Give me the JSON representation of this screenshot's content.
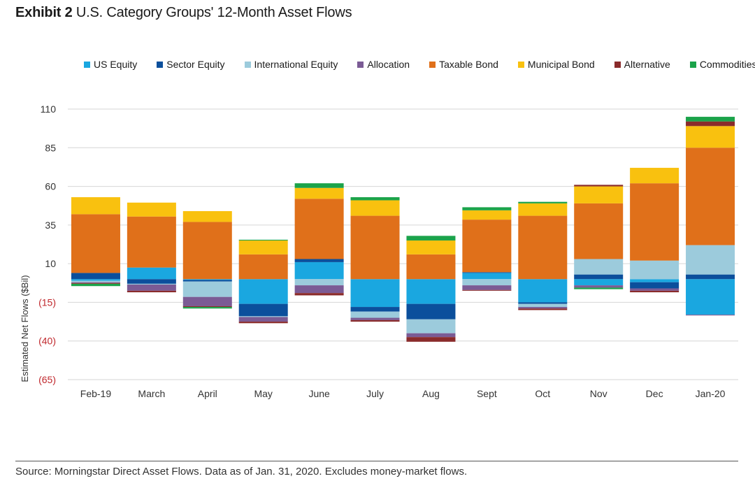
{
  "header": {
    "exhibit": "Exhibit 2",
    "title": "U.S. Category Groups' 12-Month Asset Flows"
  },
  "footer": {
    "source": "Source: Morningstar Direct Asset Flows. Data as of Jan. 31, 2020. Excludes money-market flows."
  },
  "chart_data": {
    "type": "bar",
    "stacked": true,
    "ylabel": "Estimated Net Flows ($Bil)",
    "xlabel": "",
    "ylim": [
      -65,
      110
    ],
    "y_ticks": [
      {
        "value": 110,
        "label": "110",
        "color": "#333333"
      },
      {
        "value": 85,
        "label": "85",
        "color": "#333333"
      },
      {
        "value": 60,
        "label": "60",
        "color": "#333333"
      },
      {
        "value": 35,
        "label": "35",
        "color": "#333333"
      },
      {
        "value": 10,
        "label": "10",
        "color": "#333333"
      },
      {
        "value": -15,
        "label": "(15)",
        "color": "#c0282d"
      },
      {
        "value": -40,
        "label": "(40)",
        "color": "#c0282d"
      },
      {
        "value": -65,
        "label": "(65)",
        "color": "#c0282d"
      }
    ],
    "grid": true,
    "legend_position": "top",
    "categories": [
      "Feb-19",
      "March",
      "April",
      "May",
      "June",
      "July",
      "Aug",
      "Sept",
      "Oct",
      "Nov",
      "Dec",
      "Jan-20"
    ],
    "series": [
      {
        "name": "US Equity",
        "color": "#1aa7e0",
        "values": [
          -1,
          7.5,
          -0.5,
          -16,
          11,
          -18,
          -16,
          4,
          -15,
          -4,
          -2,
          -23
        ]
      },
      {
        "name": "Sector Equity",
        "color": "#0b4f9c",
        "values": [
          4,
          -3,
          -1,
          -8,
          2,
          -3,
          -10,
          0.5,
          -1,
          3,
          -4,
          3
        ]
      },
      {
        "name": "International Equity",
        "color": "#9ccbdc",
        "values": [
          -1,
          -0.5,
          -10,
          -0.5,
          -4,
          -4,
          -9,
          -4,
          -2,
          10,
          12,
          19
        ]
      },
      {
        "name": "Allocation",
        "color": "#7b5b95",
        "values": [
          -0.5,
          -4,
          -6,
          -3,
          -5,
          -1.5,
          -2.5,
          -3,
          -1,
          -1.5,
          -1.5,
          -0.5
        ]
      },
      {
        "name": "Taxable Bond",
        "color": "#e0701a",
        "values": [
          38,
          33,
          37,
          16,
          39,
          41,
          16,
          34,
          41,
          36,
          50,
          63
        ]
      },
      {
        "name": "Municipal Bond",
        "color": "#f9c10f",
        "values": [
          11,
          9,
          7,
          9,
          7,
          10,
          9,
          6,
          8,
          11,
          10,
          14
        ]
      },
      {
        "name": "Alternative",
        "color": "#8a2b2b",
        "values": [
          -0.5,
          -1,
          -0.5,
          -1,
          -1.5,
          -1,
          -3,
          -0.5,
          -1,
          1,
          -1,
          3
        ]
      },
      {
        "name": "Commodities",
        "color": "#1ba34a",
        "values": [
          -1.5,
          0,
          -1,
          0.5,
          3,
          2,
          3,
          2,
          1,
          -1,
          0,
          3
        ]
      }
    ]
  }
}
